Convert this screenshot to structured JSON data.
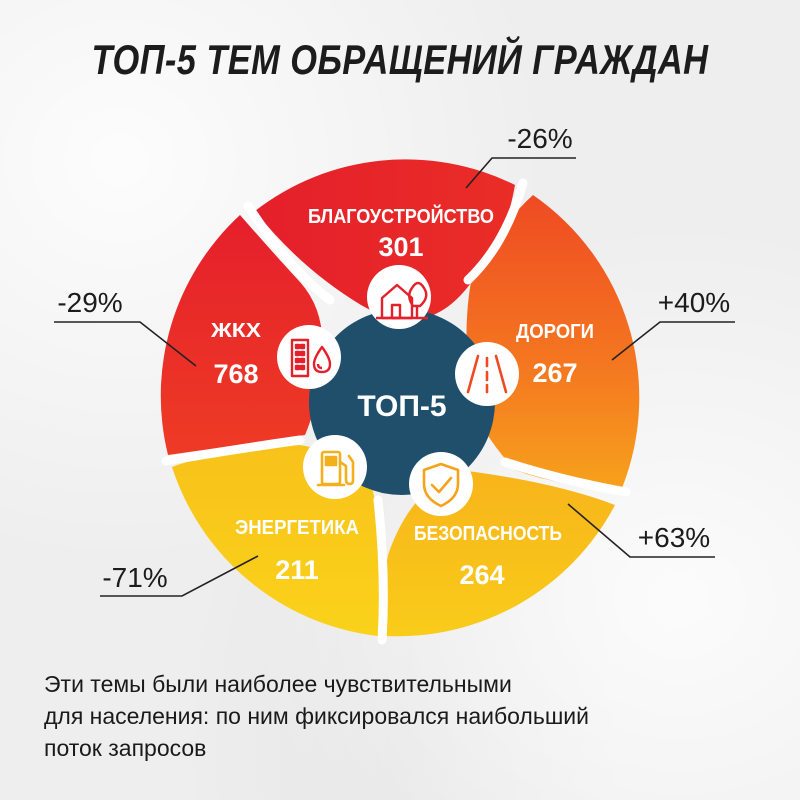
{
  "title": "ТОП-5 ТЕМ ОБРАЩЕНИЙ ГРАЖДАН",
  "center_label": "ТОП-5",
  "caption_lines": [
    "Эти темы были наиболее чувствительными",
    "для населения: по ним фиксировался наибольший",
    "поток запросов"
  ],
  "colors": {
    "red": "#e8202a",
    "orange": "#f05a24",
    "yellow": "#f8c11a",
    "center": "#1f4f6b"
  },
  "chart_data": {
    "type": "pie",
    "title": "ТОП-5 ТЕМ ОБРАЩЕНИЙ ГРАЖДАН",
    "categories": [
      "БЛАГОУСТРОЙСТВО",
      "ДОРОГИ",
      "БЕЗОПАСНОСТЬ",
      "ЭНЕРГЕТИКА",
      "ЖКХ"
    ],
    "values": [
      301,
      267,
      264,
      211,
      768
    ],
    "changes": [
      "-26%",
      "+40%",
      "+63%",
      "-71%",
      "-29%"
    ],
    "icons": [
      "house-tree-icon",
      "road-icon",
      "shield-check-icon",
      "fuel-pump-icon",
      "building-drop-icon"
    ]
  }
}
